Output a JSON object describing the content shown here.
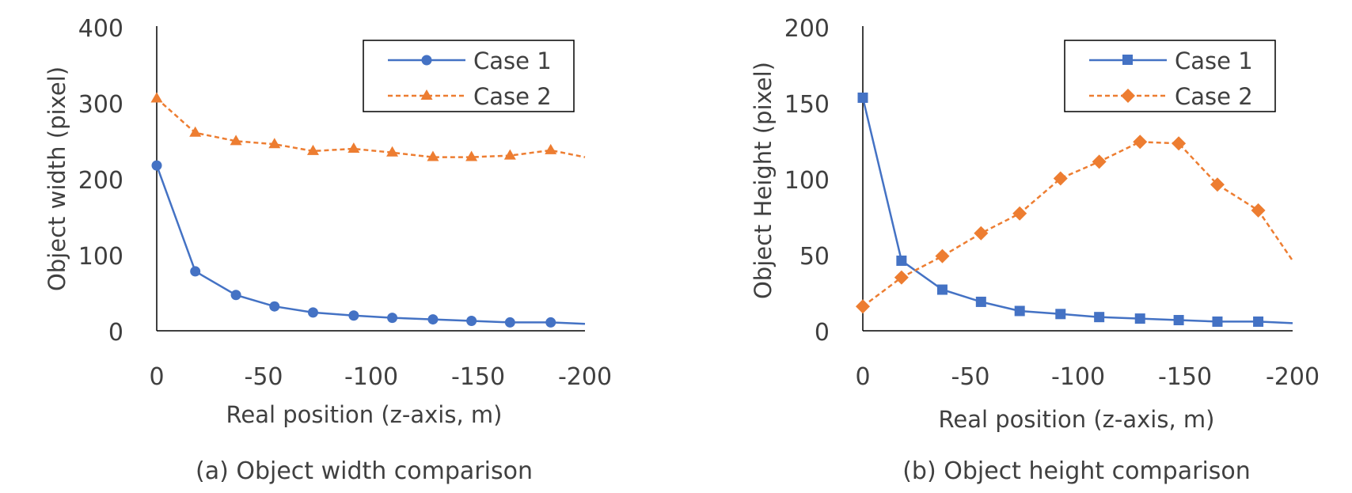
{
  "chart_data": [
    {
      "type": "line",
      "caption": "(a) Object width comparison",
      "xlabel": "Real position (z-axis, m)",
      "ylabel": "Object width (pixel)",
      "xlim": [
        0,
        -200
      ],
      "ylim": [
        0,
        400
      ],
      "xticks": [
        0,
        -50,
        -100,
        -150,
        -200
      ],
      "yticks": [
        0,
        100,
        200,
        300,
        400
      ],
      "xtick_labels": [
        "0",
        "-50",
        "-100",
        "-150",
        "-200"
      ],
      "ytick_labels": [
        "0",
        "100",
        "200",
        "300",
        "400"
      ],
      "grid": false,
      "legend_position": "top-right",
      "series": [
        {
          "name": "Case 1",
          "color": "#4472C4",
          "marker": "circle",
          "line_style": "solid",
          "x": [
            0,
            -18,
            -37,
            -55,
            -73,
            -92,
            -110,
            -129,
            -147,
            -165,
            -184,
            -200
          ],
          "y": [
            217,
            78,
            47,
            32,
            24,
            20,
            17,
            15,
            13,
            11,
            11,
            9
          ]
        },
        {
          "name": "Case 2",
          "color": "#ED7D31",
          "marker": "triangle",
          "line_style": "dashed",
          "x": [
            0,
            -18,
            -37,
            -55,
            -73,
            -92,
            -110,
            -129,
            -147,
            -165,
            -184,
            -200
          ],
          "y": [
            305,
            260,
            249,
            245,
            236,
            239,
            234,
            228,
            228,
            230,
            237,
            228
          ]
        }
      ]
    },
    {
      "type": "line",
      "caption": "(b) Object height comparison",
      "xlabel": "Real position (z-axis, m)",
      "ylabel": "Object Height (pixel)",
      "xlim": [
        0,
        -200
      ],
      "ylim": [
        0,
        200
      ],
      "xticks": [
        0,
        -50,
        -100,
        -150,
        -200
      ],
      "yticks": [
        0,
        50,
        100,
        150,
        200
      ],
      "xtick_labels": [
        "0",
        "-50",
        "-100",
        "-150",
        "-200"
      ],
      "ytick_labels": [
        "0",
        "50",
        "100",
        "150",
        "200"
      ],
      "grid": false,
      "legend_position": "top-right",
      "series": [
        {
          "name": "Case 1",
          "color": "#4472C4",
          "marker": "square",
          "line_style": "solid",
          "x": [
            0,
            -18,
            -37,
            -55,
            -73,
            -92,
            -110,
            -129,
            -147,
            -165,
            -184,
            -200
          ],
          "y": [
            153,
            46,
            27,
            19,
            13,
            11,
            9,
            8,
            7,
            6,
            6,
            5
          ]
        },
        {
          "name": "Case 2",
          "color": "#ED7D31",
          "marker": "diamond",
          "line_style": "dashed",
          "x": [
            0,
            -18,
            -37,
            -55,
            -73,
            -92,
            -110,
            -129,
            -147,
            -165,
            -184,
            -200
          ],
          "y": [
            16,
            35,
            49,
            64,
            77,
            100,
            111,
            124,
            123,
            96,
            79,
            46
          ]
        }
      ]
    }
  ]
}
